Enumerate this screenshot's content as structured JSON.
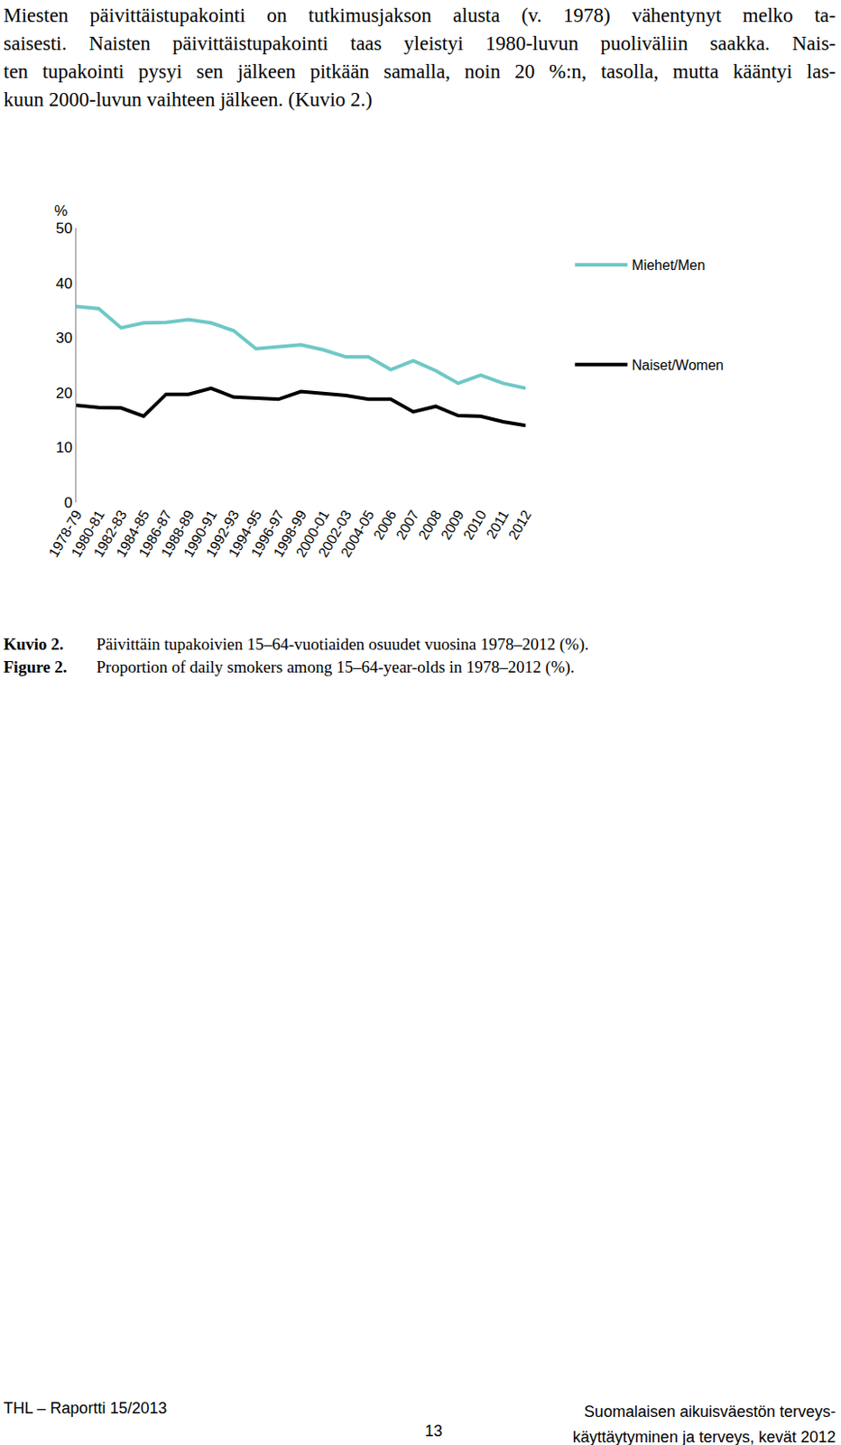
{
  "paragraph": [
    "Miesten päivittäistupakointi on tutkimusjakson alusta (v. 1978) vähentynyt melko ta-",
    "saisesti. Naisten päivittäistupakointi taas yleistyi 1980-luvun puoliväliin saakka. Nais-",
    "ten tupakointi pysyi sen jälkeen pitkään samalla, noin 20 %:n, tasolla, mutta kääntyi las-",
    "kuun 2000-luvun vaihteen jälkeen. (Kuvio 2.)"
  ],
  "chart_data": {
    "type": "line",
    "y_label": "%",
    "categories": [
      "1978-79",
      "1980-81",
      "1982-83",
      "1984-85",
      "1986-87",
      "1988-89",
      "1990-91",
      "1992-93",
      "1994-95",
      "1996-97",
      "1998-99",
      "2000-01",
      "2002-03",
      "2004-05",
      "2006",
      "2007",
      "2008",
      "2009",
      "2010",
      "2011",
      "2012"
    ],
    "series": [
      {
        "name": "Miehet/Men",
        "color": "#6ec8c6",
        "values": [
          35.7,
          35.3,
          31.8,
          32.7,
          32.8,
          33.3,
          32.7,
          31.3,
          28,
          28.3,
          28.7,
          27.8,
          26.5,
          26.5,
          24.2,
          25.8,
          24,
          21.7,
          23.2,
          21.7,
          20.8
        ]
      },
      {
        "name": "Naiset/Women",
        "color": "#000000",
        "values": [
          17.7,
          17.3,
          17.2,
          15.7,
          19.7,
          19.7,
          20.8,
          19.2,
          19,
          18.8,
          20.2,
          19.8,
          19.5,
          18.8,
          18.8,
          16.5,
          17.5,
          15.8,
          15.7,
          14.7,
          14
        ]
      }
    ],
    "ylim": [
      0,
      50
    ],
    "yticks": [
      0,
      10,
      20,
      30,
      40,
      50
    ],
    "grid": false,
    "legend": "right"
  },
  "captions": [
    {
      "label": "Kuvio 2.",
      "text": "Päivittäin tupakoivien 15–64-vuotiaiden osuudet vuosina 1978–2012 (%)."
    },
    {
      "label": "Figure 2.",
      "text": "Proportion of daily smokers among 15–64-year-olds in 1978–2012 (%)."
    }
  ],
  "footer": {
    "left": "THL – Raportti 15/2013",
    "page": 13,
    "right": [
      "Suomalaisen aikuisväestön terveys-",
      "käyttäytyminen ja terveys, kevät 2012"
    ]
  }
}
